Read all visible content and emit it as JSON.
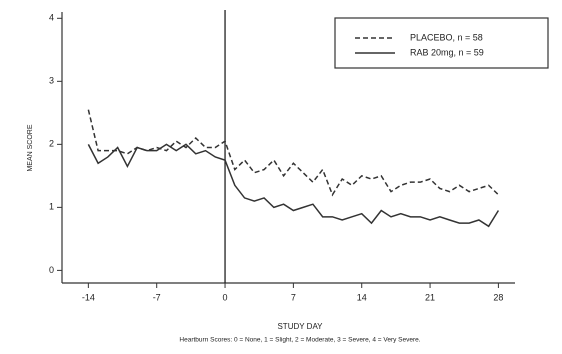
{
  "chart_data": {
    "type": "line",
    "x": [
      -14,
      -13,
      -12,
      -11,
      -10,
      -9,
      -8,
      -7,
      -6,
      -5,
      -4,
      -3,
      -2,
      -1,
      0,
      1,
      2,
      3,
      4,
      5,
      6,
      7,
      8,
      9,
      10,
      11,
      12,
      13,
      14,
      15,
      16,
      17,
      18,
      19,
      20,
      21,
      22,
      23,
      24,
      25,
      26,
      27,
      28
    ],
    "series": [
      {
        "name": "PLACEBO, n = 58",
        "color": "#333333",
        "style": "dashed",
        "values": [
          2.55,
          1.9,
          1.9,
          1.9,
          1.85,
          1.95,
          1.9,
          1.95,
          1.9,
          2.05,
          1.95,
          2.1,
          1.95,
          1.95,
          2.05,
          1.6,
          1.75,
          1.55,
          1.6,
          1.75,
          1.5,
          1.7,
          1.55,
          1.4,
          1.6,
          1.2,
          1.45,
          1.35,
          1.5,
          1.45,
          1.5,
          1.25,
          1.35,
          1.4,
          1.4,
          1.45,
          1.3,
          1.25,
          1.35,
          1.25,
          1.3,
          1.35,
          1.2
        ]
      },
      {
        "name": "RAB 20mg, n = 59",
        "color": "#333333",
        "style": "solid",
        "values": [
          2.0,
          1.7,
          1.8,
          1.95,
          1.65,
          1.95,
          1.9,
          1.9,
          2.0,
          1.9,
          2.0,
          1.85,
          1.9,
          1.8,
          1.75,
          1.35,
          1.15,
          1.1,
          1.15,
          1.0,
          1.05,
          0.95,
          1.0,
          1.05,
          0.85,
          0.85,
          0.8,
          0.85,
          0.9,
          0.75,
          0.95,
          0.85,
          0.9,
          0.85,
          0.85,
          0.8,
          0.85,
          0.8,
          0.75,
          0.75,
          0.8,
          0.7,
          0.95
        ]
      }
    ],
    "xlabel": "STUDY DAY",
    "ylabel": "MEAN SCORE",
    "caption": "Heartburn Scores: 0 = None, 1 = Slight, 2 = Moderate, 3 = Severe, 4 = Very Severe.",
    "xlim": [
      -16.7,
      29.7
    ],
    "xticks": [
      -14,
      -7,
      0,
      7,
      14,
      21,
      28
    ],
    "ylim": [
      -0.2,
      4.1
    ],
    "yticks": [
      0,
      1,
      2,
      3,
      4
    ],
    "vline": 0,
    "legend": "upper-right"
  }
}
